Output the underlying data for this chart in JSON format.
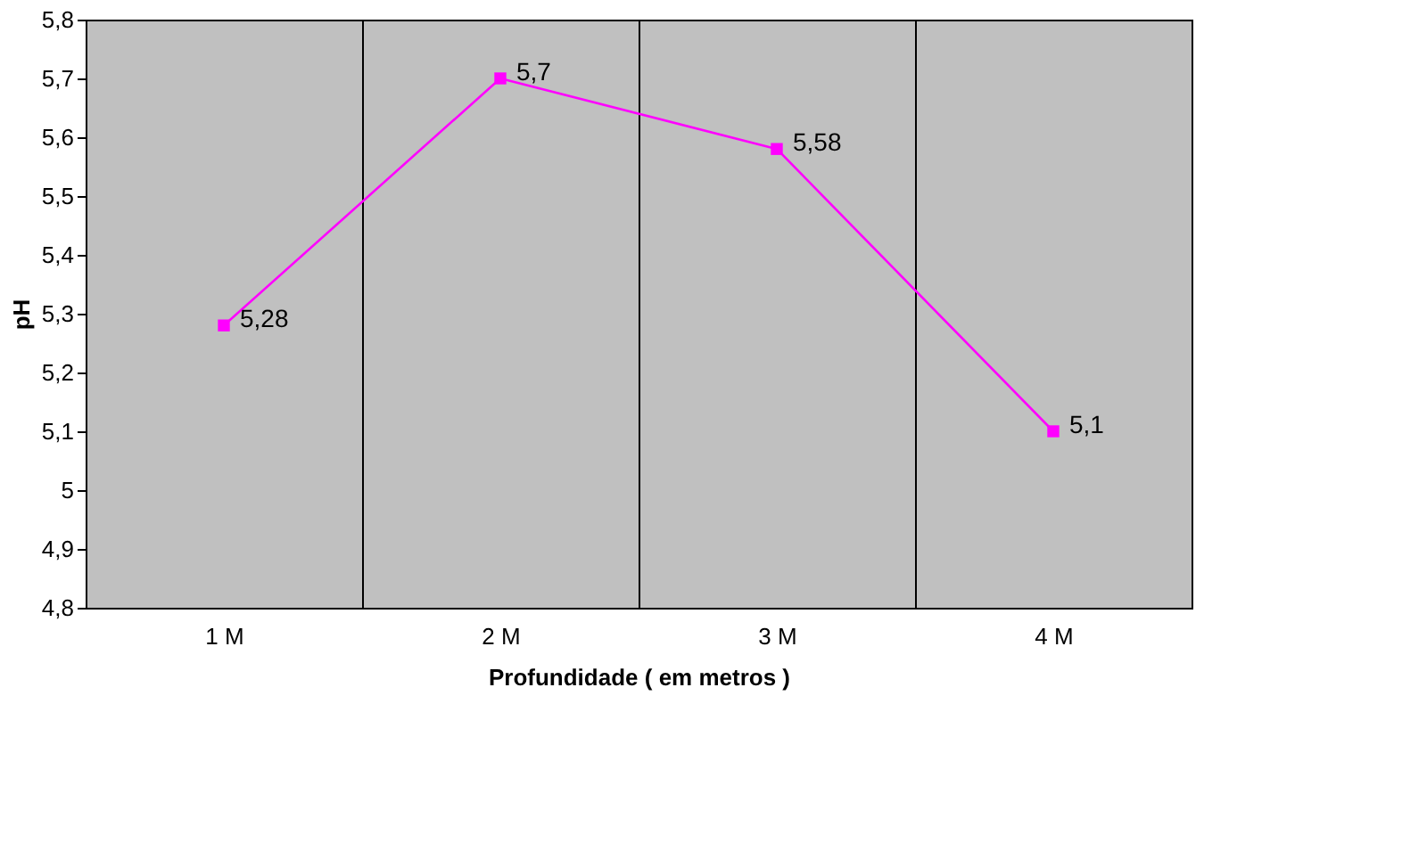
{
  "chart_data": {
    "type": "line",
    "xlabel": "Profundidade ( em metros )",
    "ylabel": "pH",
    "categories": [
      "1 M",
      "2 M",
      "3 M",
      "4 M"
    ],
    "series": [
      {
        "color": "#ff00ff",
        "values": [
          5.28,
          5.7,
          5.58,
          5.1
        ]
      }
    ],
    "ylim": [
      4.8,
      5.8
    ],
    "yticks": [
      {
        "value": 4.8,
        "label": "4,8"
      },
      {
        "value": 4.9,
        "label": "4,9"
      },
      {
        "value": 5,
        "label": "5"
      },
      {
        "value": 5.1,
        "label": "5,1"
      },
      {
        "value": 5.2,
        "label": "5,2"
      },
      {
        "value": 5.3,
        "label": "5,3"
      },
      {
        "value": 5.4,
        "label": "5,4"
      },
      {
        "value": 5.5,
        "label": "5,5"
      },
      {
        "value": 5.6,
        "label": "5,6"
      },
      {
        "value": 5.7,
        "label": "5,7"
      },
      {
        "value": 5.8,
        "label": "5,8"
      }
    ],
    "value_labels": [
      "5,28",
      "5,7",
      "5,58",
      "5,1"
    ],
    "grid": "x",
    "marker": "square",
    "line_style": "solid",
    "legend": false
  }
}
